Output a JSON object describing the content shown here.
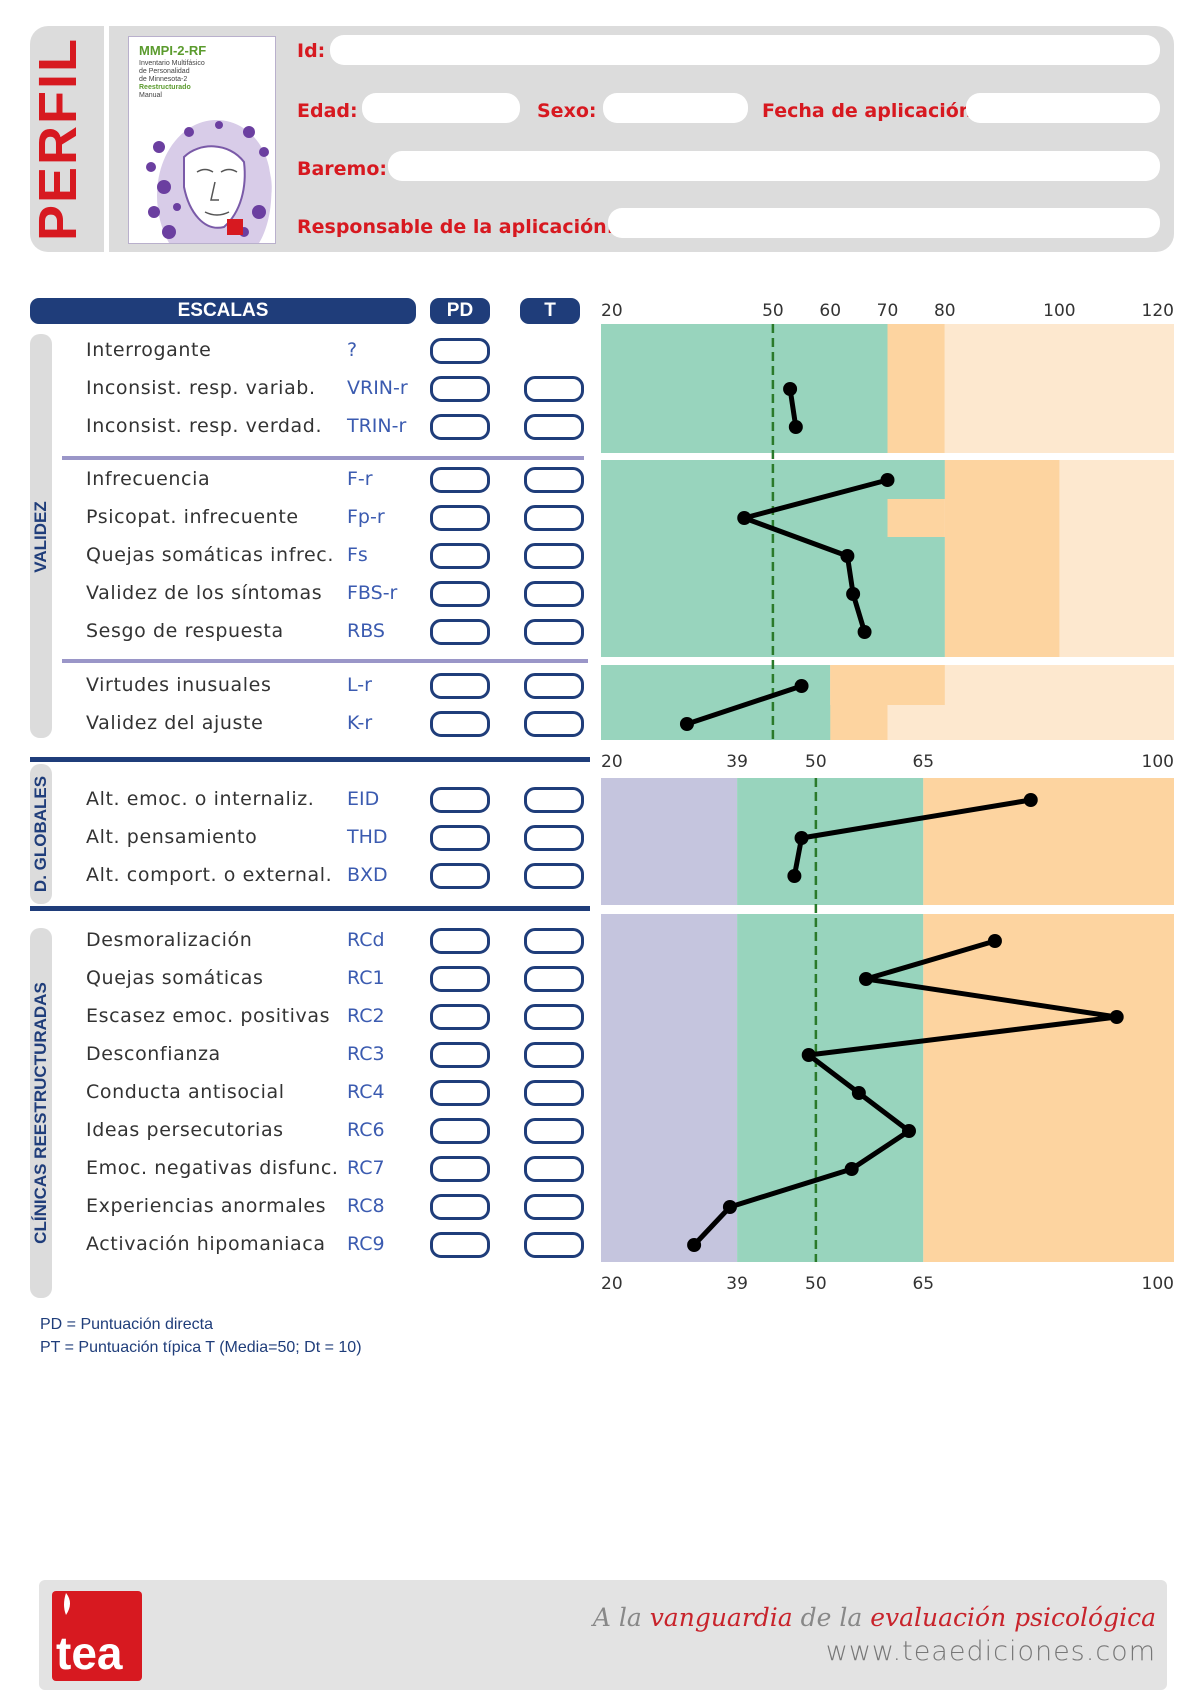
{
  "header": {
    "title": "PERFIL",
    "cover": {
      "title": "MMPI-2-RF",
      "subtitle_lines": [
        "Inventario Multifásico",
        "de Personalidad",
        "de Minnesota-2",
        "Reestructurado",
        "Manual"
      ]
    },
    "fields": {
      "id": {
        "label": "Id:",
        "value": ""
      },
      "edad": {
        "label": "Edad:",
        "value": ""
      },
      "sexo": {
        "label": "Sexo:",
        "value": ""
      },
      "fecha": {
        "label": "Fecha de aplicación:",
        "value": ""
      },
      "baremo": {
        "label": "Baremo:",
        "value": ""
      },
      "responsable": {
        "label": "Responsable de la aplicación:",
        "value": ""
      }
    }
  },
  "columns": {
    "scales": "ESCALAS",
    "pd": "PD",
    "t": "T"
  },
  "sections": {
    "validez": "VALIDEZ",
    "globales": "D. GLOBALES",
    "clinicas": "CLÍNICAS REESTRUCTURADAS"
  },
  "axes": {
    "validity": {
      "ticks": [
        "20",
        "50",
        "60",
        "70",
        "80",
        "100",
        "120"
      ]
    },
    "globales_top": {
      "ticks": [
        "20",
        "39",
        "50",
        "65",
        "100"
      ]
    },
    "clinicas_bottom": {
      "ticks": [
        "20",
        "39",
        "50",
        "65",
        "100"
      ]
    }
  },
  "chart_data": {
    "type": "line",
    "validity_scale": {
      "min": 20,
      "max": 120,
      "mean": 50
    },
    "clinical_scale": {
      "min": 20,
      "max": 100,
      "mean": 50,
      "bands": [
        39,
        65
      ]
    },
    "validity_groups": [
      [
        {
          "name": "Interrogante",
          "code": "?",
          "has_t": false,
          "t": null
        },
        {
          "name": "Inconsist. resp. variab.",
          "code": "VRIN-r",
          "has_t": true,
          "t": 53
        },
        {
          "name": "Inconsist. resp. verdad.",
          "code": "TRIN-r",
          "has_t": true,
          "t": 54
        }
      ],
      [
        {
          "name": "Infrecuencia",
          "code": "F-r",
          "has_t": true,
          "t": 70
        },
        {
          "name": "Psicopat. infrecuente",
          "code": "Fp-r",
          "has_t": true,
          "t": 45
        },
        {
          "name": "Quejas somáticas infrec.",
          "code": "Fs",
          "has_t": true,
          "t": 63
        },
        {
          "name": "Validez de los síntomas",
          "code": "FBS-r",
          "has_t": true,
          "t": 64
        },
        {
          "name": "Sesgo de respuesta",
          "code": "RBS",
          "has_t": true,
          "t": 66
        }
      ],
      [
        {
          "name": "Virtudes inusuales",
          "code": "L-r",
          "has_t": true,
          "t": 55
        },
        {
          "name": "Validez del ajuste",
          "code": "K-r",
          "has_t": true,
          "t": 35
        }
      ]
    ],
    "globales": [
      {
        "name": "Alt. emoc. o internaliz.",
        "code": "EID",
        "t": 80
      },
      {
        "name": "Alt. pensamiento",
        "code": "THD",
        "t": 48
      },
      {
        "name": "Alt. comport. o external.",
        "code": "BXD",
        "t": 47
      }
    ],
    "clinicas": [
      {
        "name": "Desmoralización",
        "code": "RCd",
        "t": 75
      },
      {
        "name": "Quejas somáticas",
        "code": "RC1",
        "t": 57
      },
      {
        "name": "Escasez emoc. positivas",
        "code": "RC2",
        "t": 92
      },
      {
        "name": "Desconfianza",
        "code": "RC3",
        "t": 49
      },
      {
        "name": "Conducta antisocial",
        "code": "RC4",
        "t": 56
      },
      {
        "name": "Ideas persecutorias",
        "code": "RC6",
        "t": 63
      },
      {
        "name": "Emoc. negativas disfunc.",
        "code": "RC7",
        "t": 55
      },
      {
        "name": "Experiencias anormales",
        "code": "RC8",
        "t": 38
      },
      {
        "name": "Activación hipomaniaca",
        "code": "RC9",
        "t": 33
      }
    ]
  },
  "legend": {
    "pd": "PD = Puntuación directa",
    "pt": "PT = Puntuación típica T (Media=50; Dt = 10)"
  },
  "footer": {
    "logo_text": "tea",
    "slogan": {
      "a": "A la ",
      "b": "vanguardia",
      "c": " de la ",
      "d": "evaluación psicológica"
    },
    "website": "www.teaediciones.com"
  },
  "colors": {
    "green": "#98d4bd",
    "orange": "#fdd4a0",
    "peach": "#fde8cf",
    "lavender": "#c5c5de",
    "navy": "#1f3d7a",
    "red": "#d71920",
    "mean_line": "#2a7a2a"
  }
}
